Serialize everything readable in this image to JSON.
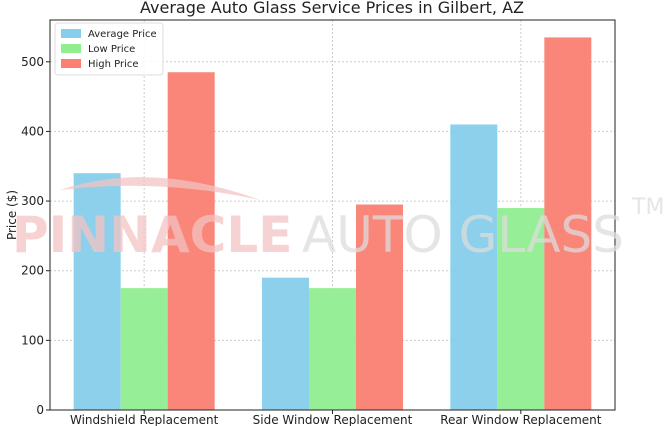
{
  "chart_data": {
    "type": "bar",
    "title": "Average Auto Glass Service Prices in Gilbert, AZ",
    "xlabel": "",
    "ylabel": "Price ($)",
    "categories": [
      "Windshield Replacement",
      "Side Window Replacement",
      "Rear Window Replacement"
    ],
    "series": [
      {
        "name": "Average Price",
        "values": [
          340,
          190,
          410
        ],
        "color": "#87ceeb"
      },
      {
        "name": "Low Price",
        "values": [
          175,
          175,
          290
        ],
        "color": "#90ee90"
      },
      {
        "name": "High Price",
        "values": [
          485,
          295,
          535
        ],
        "color": "#fa8072"
      }
    ],
    "ylim": [
      0,
      560
    ],
    "yticks": [
      0,
      100,
      200,
      300,
      400,
      500
    ],
    "grid": true,
    "legend_position": "top-left"
  },
  "watermark": {
    "brand_bold": "PINNACLE",
    "brand_light": "AUTO GLASS",
    "trademark": "TM"
  }
}
